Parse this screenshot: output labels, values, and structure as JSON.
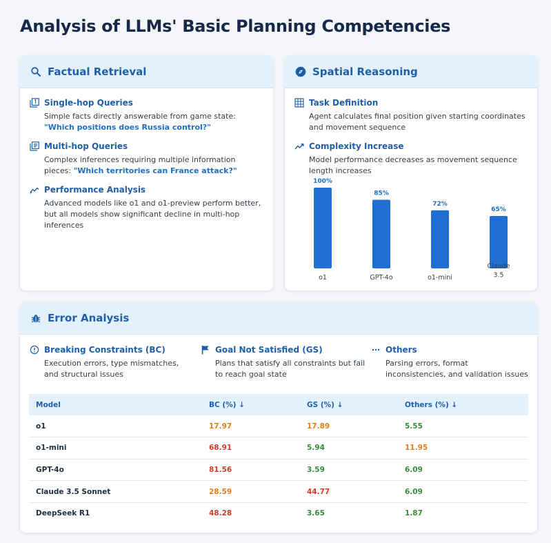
{
  "page_title": "Analysis of LLMs' Basic Planning Competencies",
  "factual": {
    "title": "Factual Retrieval",
    "icon": "search-icon",
    "items": [
      {
        "title": "Single-hop Queries",
        "icon": "filter-one-icon",
        "desc": "Simple facts directly answerable from game state: ",
        "query": "\"Which positions does Russia control?\""
      },
      {
        "title": "Multi-hop Queries",
        "icon": "multi-layer-icon",
        "desc": "Complex inferences requiring multiple information pieces: ",
        "query": "\"Which territories can France attack?\""
      },
      {
        "title": "Performance Analysis",
        "icon": "trend-icon",
        "desc": "Advanced models like o1 and o1-preview perform better, but all models show significant decline in multi-hop inferences"
      }
    ]
  },
  "spatial": {
    "title": "Spatial Reasoning",
    "icon": "compass-icon",
    "items": [
      {
        "title": "Task Definition",
        "icon": "grid-icon",
        "desc": "Agent calculates final position given starting coordinates and movement sequence"
      },
      {
        "title": "Complexity Increase",
        "icon": "trend-icon",
        "desc": "Model performance decreases as movement sequence length increases"
      }
    ]
  },
  "chart_data": {
    "type": "bar",
    "categories": [
      "o1",
      "GPT-4o",
      "o1-mini",
      "Claude 3.5"
    ],
    "values": [
      100,
      85,
      72,
      65
    ],
    "value_labels": [
      "100%",
      "85%",
      "72%",
      "65%"
    ],
    "ylim": [
      0,
      100
    ],
    "color": "#1e6fd0",
    "grid": false
  },
  "errors": {
    "title": "Error Analysis",
    "icon": "bug-icon",
    "categories": [
      {
        "title": "Breaking Constraints (BC)",
        "icon": "alert-circle-icon",
        "desc": "Execution errors, type mismatches, and structural issues"
      },
      {
        "title": "Goal Not Satisfied (GS)",
        "icon": "flag-icon",
        "desc": "Plans that satisfy all constraints but fail to reach goal state"
      },
      {
        "title": "Others",
        "icon": "more-horizontal-icon",
        "desc": "Parsing errors, format inconsistencies, and validation issues"
      }
    ],
    "table": {
      "headers": [
        "Model",
        "BC (%) ↓",
        "GS (%) ↓",
        "Others (%) ↓"
      ],
      "rows": [
        [
          "o1",
          "17.97",
          "17.89",
          "5.55"
        ],
        [
          "o1-mini",
          "68.91",
          "5.94",
          "11.95"
        ],
        [
          "GPT-4o",
          "81.56",
          "3.59",
          "6.09"
        ],
        [
          "Claude 3.5 Sonnet",
          "28.59",
          "44.77",
          "6.09"
        ],
        [
          "DeepSeek R1",
          "48.28",
          "3.65",
          "1.87"
        ]
      ],
      "cell_colors": [
        [
          "orange",
          "orange",
          "green"
        ],
        [
          "red",
          "green",
          "orange"
        ],
        [
          "red",
          "green",
          "green"
        ],
        [
          "orange",
          "red",
          "green"
        ],
        [
          "red",
          "green",
          "green"
        ]
      ]
    }
  }
}
